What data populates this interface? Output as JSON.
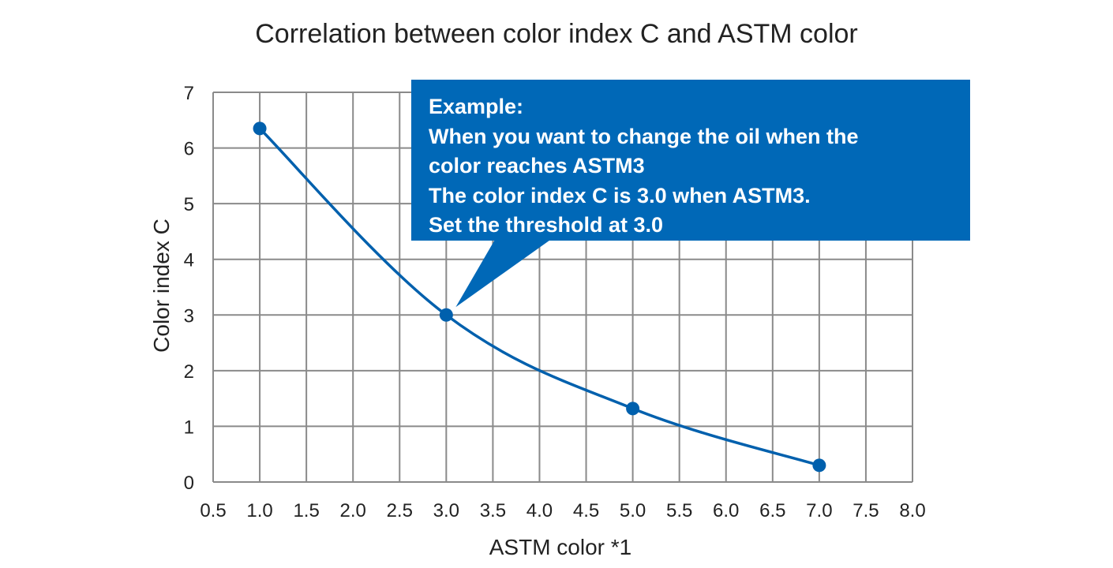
{
  "chart_data": {
    "type": "line",
    "title": "Correlation between color index C and ASTM color",
    "xlabel": "ASTM color *1",
    "ylabel": "Color index C",
    "xlim": [
      0.5,
      8.0
    ],
    "ylim": [
      0,
      7
    ],
    "x_ticks": [
      "0.5",
      "1.0",
      "1.5",
      "2.0",
      "2.5",
      "3.0",
      "3.5",
      "4.0",
      "4.5",
      "5.0",
      "5.5",
      "6.0",
      "6.5",
      "7.0",
      "7.5",
      "8.0"
    ],
    "y_ticks": [
      "0",
      "1",
      "2",
      "3",
      "4",
      "5",
      "6",
      "7"
    ],
    "grid": true,
    "series": [
      {
        "x": [
          1.0,
          3.0,
          5.0,
          7.0
        ],
        "values": [
          6.35,
          3.0,
          1.32,
          0.3
        ]
      }
    ],
    "annotation": {
      "lines": [
        "Example:",
        "When you want to change the oil when the",
        "color reaches ASTM3",
        "The color index C is 3.0 when ASTM3.",
        "Set the threshold at 3.0"
      ],
      "target_x": 3.0,
      "target_y": 3.0
    }
  },
  "colors": {
    "line": "#0060ad",
    "grid": "#8a8a8a",
    "callout": "#0068b7"
  }
}
